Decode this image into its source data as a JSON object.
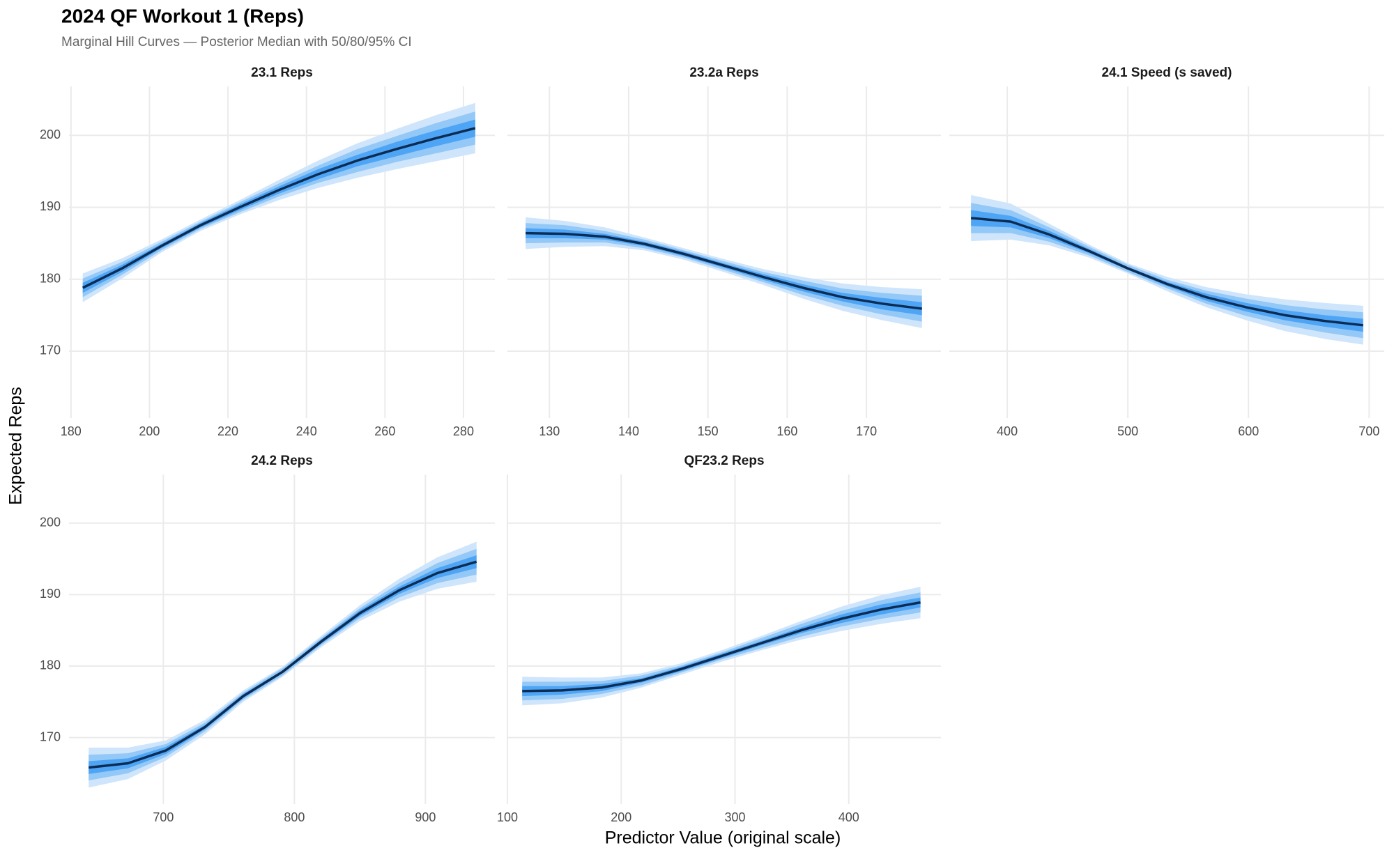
{
  "chart_data": {
    "type": "line",
    "title": "2024 QF Workout 1 (Reps)",
    "subtitle": "Marginal Hill Curves — Posterior Median with 50/80/95% CI",
    "xlabel": "Predictor Value (original scale)",
    "ylabel": "Expected Reps",
    "ylim": [
      160.7,
      206.8
    ],
    "yticks": [
      170,
      180,
      190,
      200
    ],
    "grid": true,
    "colors": {
      "ci95": "#cfe5fb",
      "ci80": "#94c8f7",
      "ci50": "#4ea5f5",
      "median": "#0d2c54"
    },
    "panels": [
      {
        "title": "23.1 Reps",
        "xlim": [
          179.5,
          288
        ],
        "xticks": [
          180,
          200,
          220,
          240,
          260,
          280
        ],
        "x": [
          183,
          193,
          203,
          213,
          223,
          233,
          243,
          253,
          263,
          273,
          283
        ],
        "median": [
          178.8,
          181.5,
          184.6,
          187.5,
          190.0,
          192.4,
          194.6,
          196.5,
          198.1,
          199.6,
          201.0
        ],
        "ci95": {
          "lower": [
            176.8,
            180.1,
            183.7,
            186.7,
            189.0,
            191.0,
            192.7,
            194.1,
            195.3,
            196.4,
            197.5
          ],
          "upper": [
            180.8,
            182.9,
            185.5,
            188.3,
            191.0,
            193.8,
            196.5,
            198.9,
            200.9,
            202.8,
            204.5
          ]
        },
        "ci80": {
          "lower": [
            177.5,
            180.6,
            184.0,
            187.0,
            189.3,
            191.5,
            193.4,
            194.9,
            196.3,
            197.5,
            198.7
          ],
          "upper": [
            180.1,
            182.4,
            185.2,
            188.0,
            190.7,
            193.3,
            195.8,
            198.1,
            199.9,
            201.7,
            203.3
          ]
        },
        "ci50": {
          "lower": [
            178.1,
            181.0,
            184.3,
            187.2,
            189.6,
            191.9,
            193.9,
            195.7,
            197.1,
            198.5,
            199.8
          ],
          "upper": [
            179.5,
            182.0,
            184.9,
            187.8,
            190.4,
            192.9,
            195.3,
            197.3,
            199.1,
            200.7,
            202.2
          ]
        }
      },
      {
        "title": "23.2a Reps",
        "xlim": [
          124.7,
          179.4
        ],
        "xticks": [
          130,
          140,
          150,
          160,
          170
        ],
        "x": [
          127,
          132,
          137,
          142,
          147,
          152,
          157,
          162,
          167,
          172,
          177
        ],
        "median": [
          186.4,
          186.3,
          185.9,
          184.9,
          183.5,
          181.9,
          180.3,
          178.8,
          177.5,
          176.6,
          175.9
        ],
        "ci95": {
          "lower": [
            184.2,
            184.5,
            184.6,
            184.0,
            182.7,
            181.0,
            179.2,
            177.3,
            175.6,
            174.3,
            173.2
          ],
          "upper": [
            188.6,
            188.1,
            187.2,
            185.8,
            184.3,
            182.8,
            181.4,
            180.3,
            179.4,
            178.9,
            178.6
          ]
        },
        "ci80": {
          "lower": [
            185.0,
            185.1,
            185.1,
            184.3,
            183.0,
            181.3,
            179.6,
            177.8,
            176.3,
            175.1,
            174.1
          ],
          "upper": [
            187.8,
            187.5,
            186.7,
            185.5,
            184.0,
            182.5,
            181.0,
            179.8,
            178.7,
            178.1,
            177.7
          ]
        },
        "ci50": {
          "lower": [
            185.7,
            185.7,
            185.5,
            184.6,
            183.2,
            181.6,
            179.9,
            178.3,
            176.9,
            175.8,
            175.0
          ],
          "upper": [
            187.1,
            186.9,
            186.3,
            185.2,
            183.8,
            182.2,
            180.7,
            179.3,
            178.1,
            177.4,
            176.8
          ]
        }
      },
      {
        "title": "24.1 Speed (s saved)",
        "xlim": [
          352,
          712.5
        ],
        "xticks": [
          400,
          500,
          600,
          700
        ],
        "x": [
          370,
          403,
          435,
          468,
          500,
          533,
          565,
          598,
          630,
          663,
          695
        ],
        "median": [
          188.5,
          188.0,
          186.2,
          183.9,
          181.5,
          179.3,
          177.5,
          176.1,
          175.0,
          174.2,
          173.6
        ],
        "ci95": {
          "lower": [
            185.3,
            185.5,
            184.7,
            183.0,
            180.8,
            178.3,
            176.1,
            174.3,
            172.8,
            171.7,
            170.9
          ],
          "upper": [
            191.7,
            190.5,
            187.7,
            184.8,
            182.2,
            180.3,
            178.9,
            177.9,
            177.2,
            176.7,
            176.3
          ]
        },
        "ci80": {
          "lower": [
            186.4,
            186.4,
            185.2,
            183.3,
            181.0,
            178.7,
            176.6,
            174.9,
            173.6,
            172.6,
            171.8
          ],
          "upper": [
            190.6,
            189.6,
            187.2,
            184.5,
            182.0,
            179.9,
            178.4,
            177.3,
            176.4,
            175.8,
            175.4
          ]
        },
        "ci50": {
          "lower": [
            187.4,
            187.2,
            185.7,
            183.6,
            181.3,
            179.0,
            177.0,
            175.5,
            174.3,
            173.4,
            172.7
          ],
          "upper": [
            189.6,
            188.8,
            186.7,
            184.2,
            181.7,
            179.6,
            178.0,
            176.7,
            175.7,
            175.0,
            174.5
          ]
        }
      },
      {
        "title": "24.2 Reps",
        "xlim": [
          628,
          953
        ],
        "xticks": [
          700,
          800,
          900
        ],
        "x": [
          643,
          673,
          702,
          732,
          761,
          791,
          821,
          850,
          880,
          909,
          939
        ],
        "median": [
          165.8,
          166.4,
          168.2,
          171.5,
          175.8,
          179.2,
          183.5,
          187.4,
          190.6,
          193.0,
          194.6
        ],
        "ci95": {
          "lower": [
            163.0,
            164.2,
            166.8,
            170.5,
            175.0,
            178.5,
            182.7,
            186.3,
            189.0,
            190.8,
            191.8
          ],
          "upper": [
            168.6,
            168.6,
            169.6,
            172.5,
            176.6,
            179.9,
            184.3,
            188.5,
            192.2,
            195.2,
            197.4
          ]
        },
        "ci80": {
          "lower": [
            164.0,
            165.0,
            167.3,
            170.9,
            175.3,
            178.7,
            183.0,
            186.7,
            189.6,
            191.6,
            192.8
          ],
          "upper": [
            167.6,
            167.8,
            169.1,
            172.1,
            176.3,
            179.7,
            184.0,
            188.1,
            191.6,
            194.4,
            196.4
          ]
        },
        "ci50": {
          "lower": [
            164.9,
            165.7,
            167.7,
            171.2,
            175.5,
            179.0,
            183.2,
            187.0,
            190.1,
            192.3,
            193.7
          ],
          "upper": [
            166.7,
            167.1,
            168.7,
            171.8,
            176.1,
            179.4,
            183.8,
            187.8,
            191.1,
            193.7,
            195.5
          ]
        }
      },
      {
        "title": "QF23.2 Reps",
        "xlim": [
          100,
          481
        ],
        "xticks": [
          100,
          200,
          300,
          400
        ],
        "x": [
          113,
          148,
          183,
          218,
          253,
          288,
          323,
          358,
          393,
          428,
          463
        ],
        "median": [
          176.5,
          176.6,
          177.0,
          178.0,
          179.6,
          181.4,
          183.2,
          185.0,
          186.6,
          187.9,
          188.9
        ],
        "ci95": {
          "lower": [
            174.5,
            174.8,
            175.6,
            177.0,
            178.8,
            180.6,
            182.2,
            183.7,
            184.9,
            185.9,
            186.7
          ],
          "upper": [
            178.5,
            178.4,
            178.4,
            179.0,
            180.4,
            182.2,
            184.2,
            186.3,
            188.3,
            189.9,
            191.1
          ]
        },
        "ci80": {
          "lower": [
            175.2,
            175.4,
            176.1,
            177.3,
            179.1,
            180.9,
            182.5,
            184.1,
            185.5,
            186.6,
            187.5
          ],
          "upper": [
            177.8,
            177.8,
            177.9,
            178.7,
            180.1,
            181.9,
            183.9,
            185.9,
            187.7,
            189.2,
            190.3
          ]
        },
        "ci50": {
          "lower": [
            175.8,
            176.0,
            176.5,
            177.7,
            179.3,
            181.1,
            182.9,
            184.6,
            186.0,
            187.2,
            188.2
          ],
          "upper": [
            177.2,
            177.2,
            177.5,
            178.3,
            179.9,
            181.7,
            183.5,
            185.4,
            187.2,
            188.6,
            189.6
          ]
        }
      }
    ]
  }
}
